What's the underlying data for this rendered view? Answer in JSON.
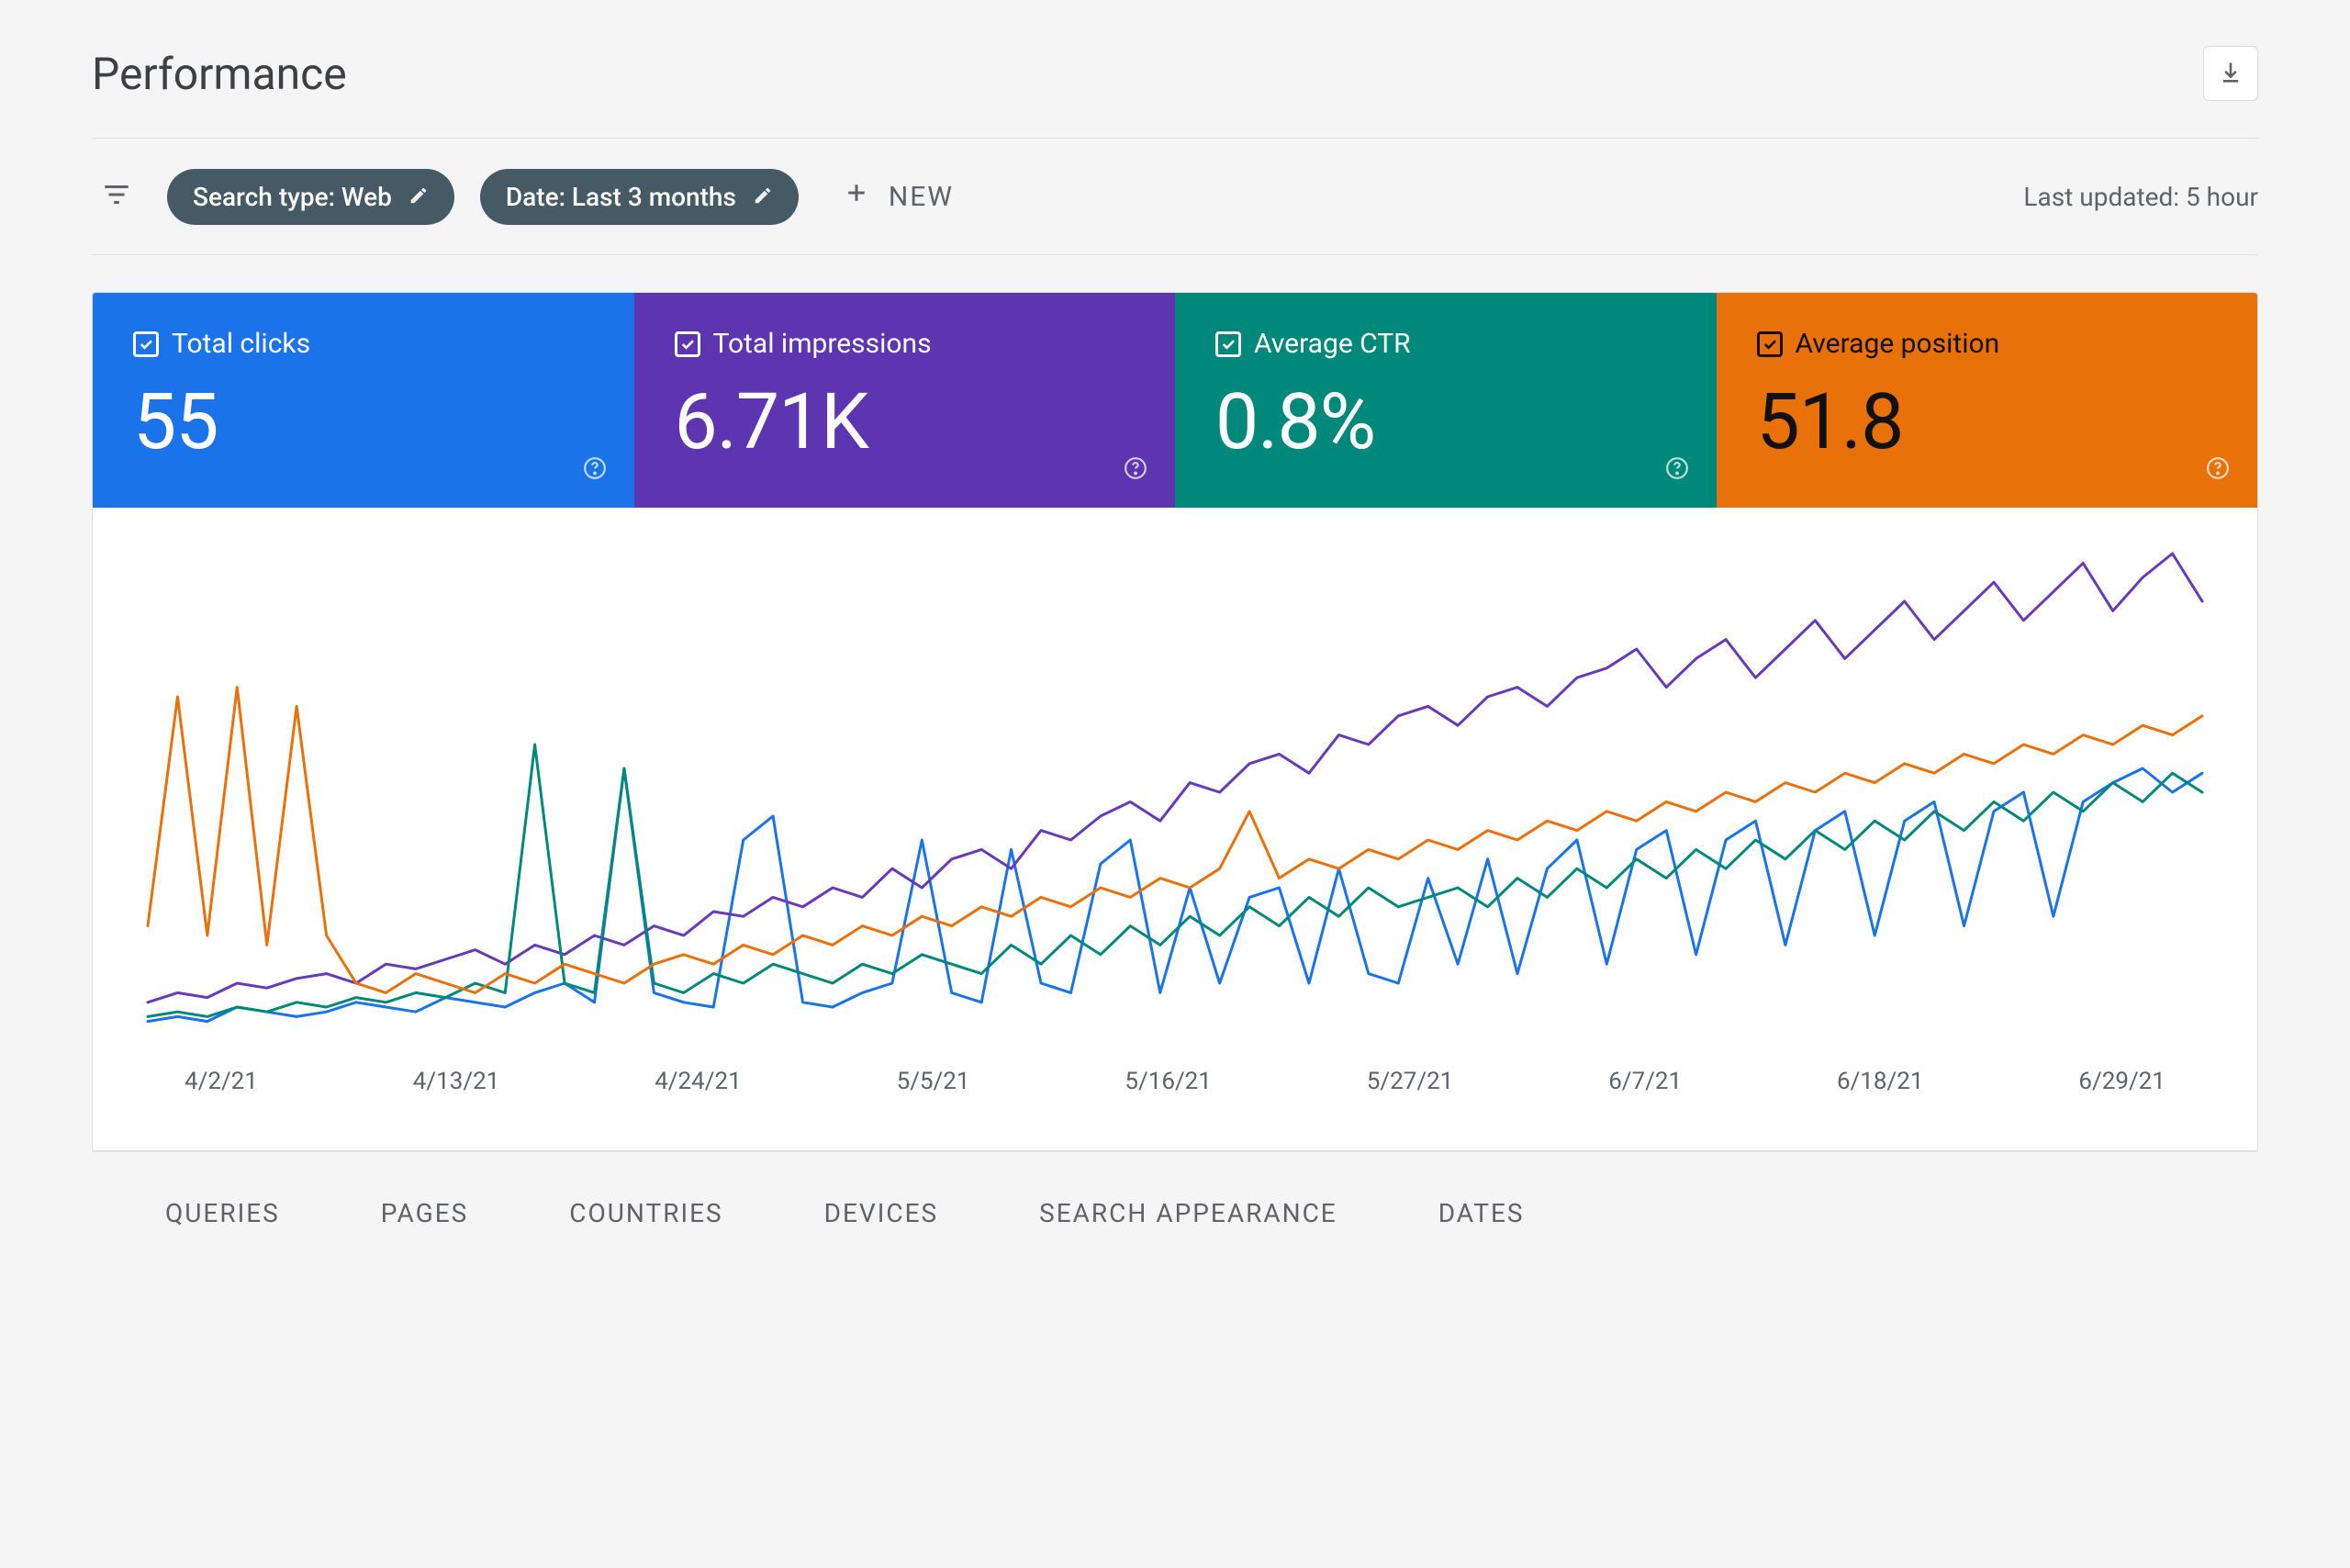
{
  "header": {
    "title": "Performance",
    "download_tooltip": "Export"
  },
  "filters": {
    "search_type_label": "Search type: Web",
    "date_label": "Date: Last 3 months",
    "new_label": "NEW",
    "last_updated": "Last updated: 5 hour"
  },
  "metrics": [
    {
      "id": "clicks",
      "label": "Total clicks",
      "value": "55",
      "color": "#1a73e8",
      "text_dark": false
    },
    {
      "id": "impressions",
      "label": "Total impressions",
      "value": "6.71K",
      "color": "#5e35b1",
      "text_dark": false
    },
    {
      "id": "ctr",
      "label": "Average CTR",
      "value": "0.8%",
      "color": "#00897b",
      "text_dark": false
    },
    {
      "id": "position",
      "label": "Average position",
      "value": "51.8",
      "color": "#e8710a",
      "text_dark": true
    }
  ],
  "chart": {
    "type": "line",
    "background_color": "#ffffff",
    "ylim": [
      0,
      100
    ],
    "line_width": 3,
    "x_labels": [
      "4/2/21",
      "4/13/21",
      "4/24/21",
      "5/5/21",
      "5/16/21",
      "5/27/21",
      "6/7/21",
      "6/18/21",
      "6/29/21"
    ],
    "x_label_color": "#5f6368",
    "x_label_fontsize": 26,
    "series": [
      {
        "name": "clicks",
        "color": "#1a73e8",
        "values": [
          2,
          3,
          2,
          5,
          4,
          3,
          4,
          6,
          5,
          4,
          7,
          6,
          5,
          8,
          10,
          6,
          55,
          8,
          6,
          5,
          40,
          45,
          6,
          5,
          8,
          10,
          40,
          8,
          6,
          38,
          10,
          8,
          35,
          40,
          8,
          30,
          10,
          28,
          30,
          10,
          34,
          12,
          10,
          32,
          14,
          36,
          12,
          34,
          40,
          14,
          38,
          42,
          16,
          40,
          44,
          18,
          42,
          46,
          20,
          44,
          48,
          22,
          46,
          50,
          24,
          48,
          52,
          55,
          50,
          54
        ]
      },
      {
        "name": "impressions",
        "color": "#673ab7",
        "values": [
          6,
          8,
          7,
          10,
          9,
          11,
          12,
          10,
          14,
          13,
          15,
          17,
          14,
          18,
          16,
          20,
          18,
          22,
          20,
          25,
          24,
          28,
          26,
          30,
          28,
          34,
          30,
          36,
          38,
          34,
          42,
          40,
          45,
          48,
          44,
          52,
          50,
          56,
          58,
          54,
          62,
          60,
          66,
          68,
          64,
          70,
          72,
          68,
          74,
          76,
          80,
          72,
          78,
          82,
          74,
          80,
          86,
          78,
          84,
          90,
          82,
          88,
          94,
          86,
          92,
          98,
          88,
          95,
          100,
          90
        ]
      },
      {
        "name": "ctr",
        "color": "#00897b",
        "values": [
          3,
          4,
          3,
          5,
          4,
          6,
          5,
          7,
          6,
          8,
          7,
          10,
          8,
          60,
          10,
          8,
          55,
          10,
          8,
          12,
          10,
          14,
          12,
          10,
          14,
          12,
          16,
          14,
          12,
          18,
          14,
          20,
          16,
          22,
          18,
          24,
          20,
          26,
          22,
          28,
          24,
          30,
          26,
          28,
          30,
          26,
          32,
          28,
          34,
          30,
          36,
          32,
          38,
          34,
          40,
          36,
          42,
          38,
          44,
          40,
          46,
          42,
          48,
          44,
          50,
          46,
          52,
          48,
          54,
          50
        ]
      },
      {
        "name": "position",
        "color": "#e8710a",
        "values": [
          22,
          70,
          20,
          72,
          18,
          68,
          20,
          10,
          8,
          12,
          10,
          8,
          12,
          10,
          14,
          12,
          10,
          14,
          16,
          14,
          18,
          16,
          20,
          18,
          22,
          20,
          24,
          22,
          26,
          24,
          28,
          26,
          30,
          28,
          32,
          30,
          34,
          46,
          32,
          36,
          34,
          38,
          36,
          40,
          38,
          42,
          40,
          44,
          42,
          46,
          44,
          48,
          46,
          50,
          48,
          52,
          50,
          54,
          52,
          56,
          54,
          58,
          56,
          60,
          58,
          62,
          60,
          64,
          62,
          66
        ]
      }
    ]
  },
  "tabs": [
    "QUERIES",
    "PAGES",
    "COUNTRIES",
    "DEVICES",
    "SEARCH APPEARANCE",
    "DATES"
  ]
}
